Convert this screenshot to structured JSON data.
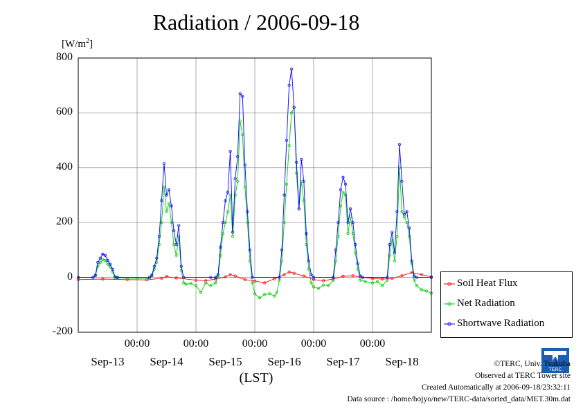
{
  "chart_data": {
    "type": "line",
    "title": "Radiation / 2006-09-18",
    "ylabel": "[W/m",
    "ylabel_sup": "2",
    "ylabel_close": "]",
    "xlabel": "(LST)",
    "ylim": [
      -200,
      800
    ],
    "xlim": [
      0,
      144
    ],
    "yticks": [
      "800",
      "600",
      "400",
      "200",
      "0",
      "-200"
    ],
    "xticks_time": [
      "00:00",
      "00:00",
      "00:00",
      "00:00",
      "00:00"
    ],
    "xticks_date": [
      "Sep-13",
      "Sep-14",
      "Sep-15",
      "Sep-16",
      "Sep-17",
      "Sep-18"
    ],
    "grid": true,
    "legend_position": "right",
    "series": [
      {
        "name": "Soil Heat Flux",
        "color": "#ff0000",
        "points": [
          [
            0,
            -8
          ],
          [
            10,
            -6
          ],
          [
            20,
            -8
          ],
          [
            28,
            -9
          ],
          [
            34,
            -3
          ],
          [
            36,
            3
          ],
          [
            40,
            -2
          ],
          [
            48,
            -10
          ],
          [
            52,
            -12
          ],
          [
            56,
            -6
          ],
          [
            60,
            2
          ],
          [
            62,
            10
          ],
          [
            64,
            5
          ],
          [
            68,
            -8
          ],
          [
            72,
            -13
          ],
          [
            76,
            -20
          ],
          [
            80,
            -5
          ],
          [
            84,
            10
          ],
          [
            86,
            20
          ],
          [
            88,
            15
          ],
          [
            92,
            5
          ],
          [
            96,
            -8
          ],
          [
            100,
            -12
          ],
          [
            104,
            -6
          ],
          [
            108,
            4
          ],
          [
            112,
            6
          ],
          [
            116,
            0
          ],
          [
            120,
            -4
          ],
          [
            124,
            -6
          ],
          [
            128,
            -4
          ],
          [
            132,
            6
          ],
          [
            136,
            18
          ],
          [
            140,
            10
          ],
          [
            144,
            2
          ]
        ]
      },
      {
        "name": "Net Radiation",
        "color": "#00cc00",
        "points": [
          [
            0,
            0
          ],
          [
            6,
            0
          ],
          [
            7,
            6
          ],
          [
            8,
            40
          ],
          [
            9,
            55
          ],
          [
            10,
            65
          ],
          [
            11,
            62
          ],
          [
            12,
            48
          ],
          [
            13,
            38
          ],
          [
            14,
            20
          ],
          [
            15,
            0
          ],
          [
            16,
            -2
          ],
          [
            24,
            -4
          ],
          [
            29,
            -4
          ],
          [
            30,
            5
          ],
          [
            31,
            30
          ],
          [
            32,
            55
          ],
          [
            33,
            120
          ],
          [
            34,
            200
          ],
          [
            35,
            330
          ],
          [
            36,
            240
          ],
          [
            37,
            270
          ],
          [
            38,
            200
          ],
          [
            39,
            120
          ],
          [
            40,
            80
          ],
          [
            41,
            150
          ],
          [
            42,
            25
          ],
          [
            43,
            -20
          ],
          [
            44,
            -25
          ],
          [
            46,
            -22
          ],
          [
            48,
            -30
          ],
          [
            50,
            -55
          ],
          [
            52,
            -20
          ],
          [
            54,
            -30
          ],
          [
            56,
            -20
          ],
          [
            57,
            0
          ],
          [
            58,
            80
          ],
          [
            59,
            160
          ],
          [
            60,
            200
          ],
          [
            61,
            240
          ],
          [
            62,
            300
          ],
          [
            63,
            150
          ],
          [
            64,
            300
          ],
          [
            65,
            350
          ],
          [
            66,
            570
          ],
          [
            67,
            520
          ],
          [
            68,
            330
          ],
          [
            69,
            200
          ],
          [
            70,
            60
          ],
          [
            71,
            -20
          ],
          [
            72,
            -60
          ],
          [
            74,
            -75
          ],
          [
            76,
            -62
          ],
          [
            78,
            -60
          ],
          [
            80,
            -68
          ],
          [
            81,
            -55
          ],
          [
            82,
            -10
          ],
          [
            83,
            60
          ],
          [
            84,
            200
          ],
          [
            85,
            340
          ],
          [
            86,
            480
          ],
          [
            87,
            600
          ],
          [
            88,
            620
          ],
          [
            89,
            380
          ],
          [
            90,
            250
          ],
          [
            91,
            350
          ],
          [
            92,
            280
          ],
          [
            93,
            120
          ],
          [
            94,
            30
          ],
          [
            95,
            -20
          ],
          [
            96,
            -35
          ],
          [
            98,
            -40
          ],
          [
            100,
            -28
          ],
          [
            102,
            -30
          ],
          [
            104,
            -10
          ],
          [
            105,
            60
          ],
          [
            106,
            150
          ],
          [
            107,
            260
          ],
          [
            108,
            310
          ],
          [
            109,
            300
          ],
          [
            110,
            160
          ],
          [
            111,
            220
          ],
          [
            112,
            160
          ],
          [
            113,
            90
          ],
          [
            114,
            30
          ],
          [
            115,
            -10
          ],
          [
            117,
            -15
          ],
          [
            120,
            -20
          ],
          [
            122,
            -15
          ],
          [
            124,
            -30
          ],
          [
            126,
            -10
          ],
          [
            127,
            80
          ],
          [
            128,
            140
          ],
          [
            129,
            60
          ],
          [
            130,
            150
          ],
          [
            131,
            400
          ],
          [
            132,
            240
          ],
          [
            133,
            220
          ],
          [
            134,
            200
          ],
          [
            135,
            150
          ],
          [
            136,
            50
          ],
          [
            137,
            -10
          ],
          [
            138,
            -30
          ],
          [
            140,
            -45
          ],
          [
            142,
            -50
          ],
          [
            144,
            -58
          ]
        ]
      },
      {
        "name": "Shortwave Radiation",
        "color": "#0000ff",
        "points": [
          [
            0,
            0
          ],
          [
            6,
            0
          ],
          [
            7,
            8
          ],
          [
            8,
            55
          ],
          [
            9,
            70
          ],
          [
            10,
            85
          ],
          [
            11,
            80
          ],
          [
            12,
            62
          ],
          [
            13,
            48
          ],
          [
            14,
            30
          ],
          [
            15,
            2
          ],
          [
            16,
            0
          ],
          [
            29,
            0
          ],
          [
            30,
            8
          ],
          [
            31,
            40
          ],
          [
            32,
            70
          ],
          [
            33,
            150
          ],
          [
            34,
            280
          ],
          [
            35,
            415
          ],
          [
            36,
            300
          ],
          [
            37,
            320
          ],
          [
            38,
            260
          ],
          [
            39,
            170
          ],
          [
            40,
            120
          ],
          [
            41,
            190
          ],
          [
            42,
            40
          ],
          [
            43,
            0
          ],
          [
            54,
            0
          ],
          [
            56,
            0
          ],
          [
            57,
            10
          ],
          [
            58,
            110
          ],
          [
            59,
            200
          ],
          [
            60,
            280
          ],
          [
            61,
            310
          ],
          [
            62,
            460
          ],
          [
            63,
            165
          ],
          [
            64,
            360
          ],
          [
            65,
            440
          ],
          [
            66,
            670
          ],
          [
            67,
            660
          ],
          [
            68,
            410
          ],
          [
            69,
            240
          ],
          [
            70,
            100
          ],
          [
            71,
            0
          ],
          [
            82,
            0
          ],
          [
            83,
            100
          ],
          [
            84,
            300
          ],
          [
            85,
            500
          ],
          [
            86,
            700
          ],
          [
            87,
            760
          ],
          [
            88,
            620
          ],
          [
            89,
            420
          ],
          [
            90,
            250
          ],
          [
            91,
            430
          ],
          [
            92,
            350
          ],
          [
            93,
            160
          ],
          [
            94,
            60
          ],
          [
            95,
            10
          ],
          [
            96,
            0
          ],
          [
            104,
            0
          ],
          [
            105,
            100
          ],
          [
            106,
            200
          ],
          [
            107,
            320
          ],
          [
            108,
            365
          ],
          [
            109,
            340
          ],
          [
            110,
            200
          ],
          [
            111,
            250
          ],
          [
            112,
            200
          ],
          [
            113,
            120
          ],
          [
            114,
            50
          ],
          [
            115,
            5
          ],
          [
            116,
            0
          ],
          [
            126,
            0
          ],
          [
            127,
            120
          ],
          [
            128,
            165
          ],
          [
            129,
            90
          ],
          [
            130,
            240
          ],
          [
            131,
            485
          ],
          [
            132,
            350
          ],
          [
            133,
            230
          ],
          [
            134,
            240
          ],
          [
            135,
            180
          ],
          [
            136,
            60
          ],
          [
            137,
            5
          ],
          [
            138,
            0
          ],
          [
            144,
            0
          ]
        ]
      }
    ]
  },
  "credits": {
    "line1": "©TERC, Univ. Tsukuba",
    "line2": "Observed at TERC Tower site",
    "line3": "Created Automatically at 2006-09-18/23:32:11",
    "line4": "Data source : /home/hojyo/new/TERC-data/sorted_data/MET.30m.dat"
  },
  "logo": {
    "text": "TERC",
    "color": "#1a5fb4"
  }
}
